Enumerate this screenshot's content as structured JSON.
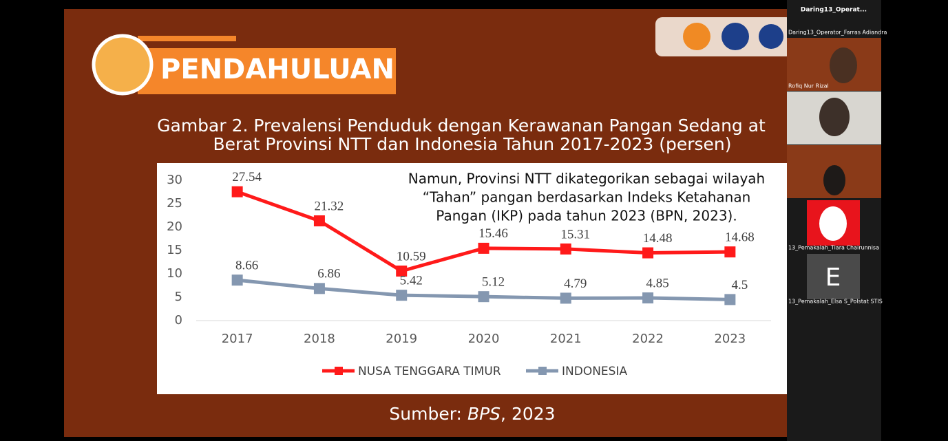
{
  "slide": {
    "heading": "PENDAHULUAN",
    "figure_title": [
      "Gambar 2. Prevalensi Penduduk dengan Kerawanan Pangan Sedang at",
      "Berat Provinsi NTT dan Indonesia Tahun 2017-2023 (persen)"
    ],
    "source": {
      "prefix": "Sumber: ",
      "name": "BPS",
      "suffix": ", 2023"
    }
  },
  "chart_data": {
    "type": "line",
    "categories": [
      "2017",
      "2018",
      "2019",
      "2020",
      "2021",
      "2022",
      "2023"
    ],
    "series": [
      {
        "name": "NUSA TENGGARA TIMUR",
        "color": "#ff1a1a",
        "values": [
          27.54,
          21.32,
          10.59,
          15.46,
          15.31,
          14.48,
          14.68
        ]
      },
      {
        "name": "INDONESIA",
        "color": "#8497b0",
        "values": [
          8.66,
          6.86,
          5.42,
          5.12,
          4.79,
          4.85,
          4.5
        ]
      }
    ],
    "ylim": [
      0,
      30
    ],
    "yticks": [
      0,
      5,
      10,
      15,
      20,
      25,
      30
    ],
    "grid": false,
    "legend": "bottom",
    "annotation": [
      "Namun, Provinsi NTT dikategorikan sebagai wilayah",
      "“Tahan” pangan berdasarkan Indeks Ketahanan",
      "Pangan (IKP) pada tahun 2023 (BPN, 2023)."
    ]
  },
  "participants": {
    "header": "Daring13_Operat...",
    "tiles": [
      {
        "label": "Daring13_Operator_Farras Adiandra"
      },
      {
        "label": "Rofiq Nur Rizal"
      },
      {
        "label": "13_Pemakalah_Tiara Chairunnisa"
      },
      {
        "label": "13_Pemakalah_Elsa S_Polstat STIS",
        "avatar": "E"
      }
    ]
  }
}
